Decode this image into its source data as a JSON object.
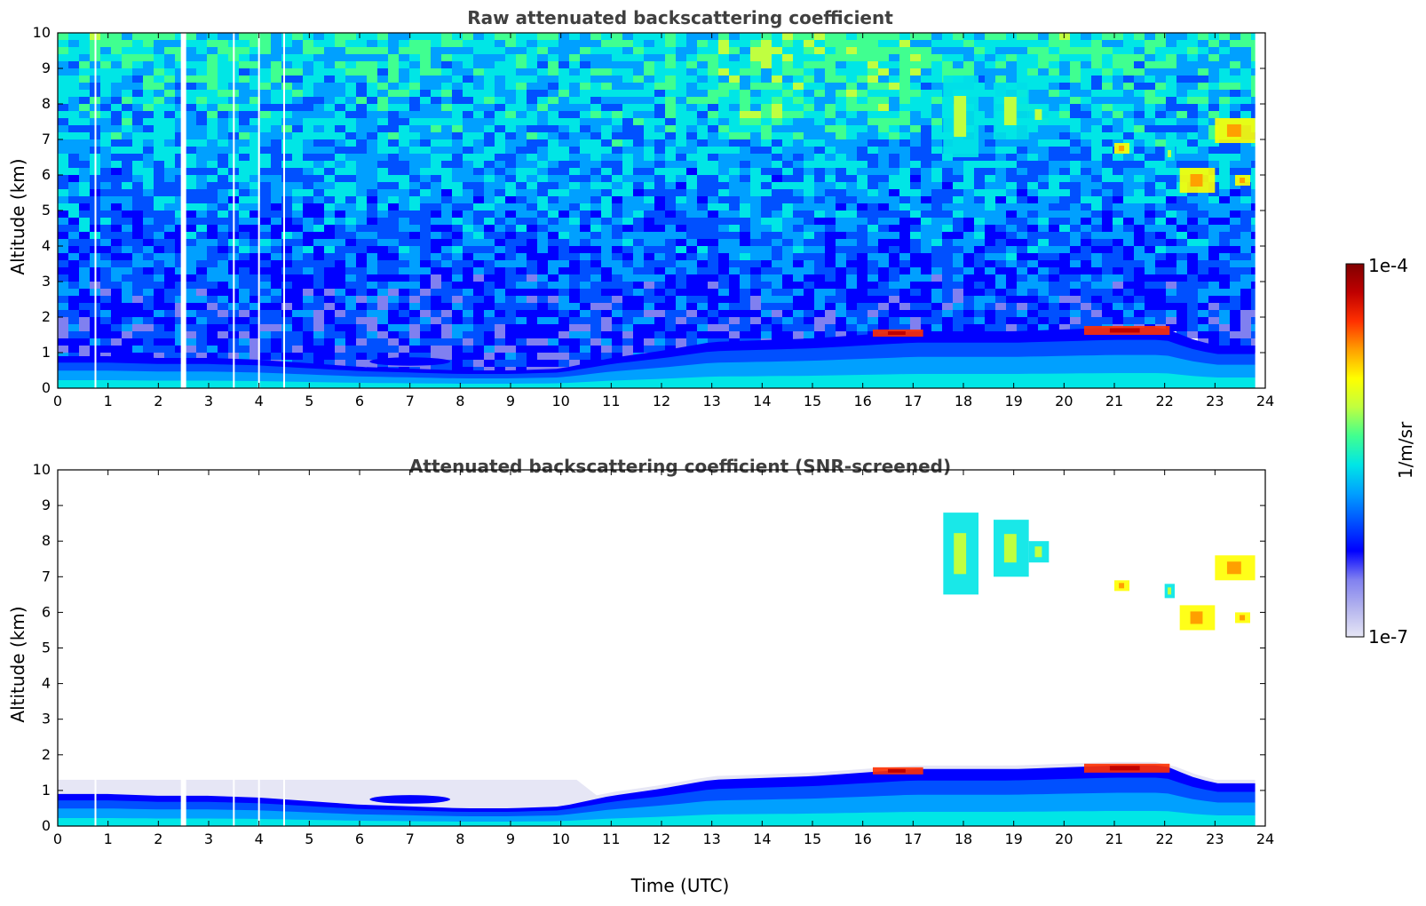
{
  "figure": {
    "xlabel": "Time (UTC)",
    "colorbar": {
      "label": "1/m/sr",
      "min_label": "1e-7",
      "max_label": "1e-4",
      "scale": "log",
      "range": [
        1e-07,
        0.0001
      ],
      "colormap": "jet",
      "colors": [
        "#e6e6f5",
        "#b4b4ee",
        "#8080f0",
        "#0000ff",
        "#0050ff",
        "#00a0ff",
        "#00e6e6",
        "#40ff90",
        "#c0ff40",
        "#ffff00",
        "#ffa000",
        "#ff3000",
        "#c00000",
        "#800000"
      ]
    }
  },
  "chart_data": [
    {
      "type": "heatmap",
      "title": "Raw attenuated backscattering coefficient",
      "xlabel": "",
      "ylabel": "Altitude (km)",
      "xlim": [
        0,
        24
      ],
      "ylim": [
        0,
        10
      ],
      "xticks": [
        "0",
        "1",
        "2",
        "3",
        "4",
        "5",
        "6",
        "7",
        "8",
        "9",
        "10",
        "11",
        "12",
        "13",
        "14",
        "15",
        "16",
        "17",
        "18",
        "19",
        "20",
        "21",
        "22",
        "23",
        "24"
      ],
      "yticks": [
        "0",
        "1",
        "2",
        "3",
        "4",
        "5",
        "6",
        "7",
        "8",
        "9",
        "10"
      ],
      "data_gaps_hours": [
        0.75,
        2.5,
        3.5,
        4.0,
        4.5
      ],
      "data_end_hour": 23.8,
      "boundary_layer_top_km": {
        "x": [
          0,
          1,
          2,
          3,
          4,
          5,
          6,
          7,
          8,
          9,
          10,
          11,
          12,
          13,
          14,
          15,
          16,
          17,
          18,
          19,
          20,
          21,
          22,
          22.5,
          23,
          23.8
        ],
        "y": [
          0.9,
          0.9,
          0.85,
          0.85,
          0.8,
          0.7,
          0.6,
          0.55,
          0.5,
          0.5,
          0.55,
          0.85,
          1.05,
          1.3,
          1.35,
          1.4,
          1.5,
          1.6,
          1.6,
          1.6,
          1.65,
          1.7,
          1.7,
          1.4,
          1.2,
          1.2
        ]
      },
      "clouds": [
        {
          "t0": 17.6,
          "t1": 18.3,
          "alt0": 6.5,
          "alt1": 8.8,
          "level": "medium"
        },
        {
          "t0": 18.6,
          "t1": 19.3,
          "alt0": 7.0,
          "alt1": 8.6,
          "level": "medium"
        },
        {
          "t0": 19.3,
          "t1": 19.7,
          "alt0": 7.4,
          "alt1": 8.0,
          "level": "medium"
        },
        {
          "t0": 21.0,
          "t1": 21.3,
          "alt0": 6.6,
          "alt1": 6.9,
          "level": "high"
        },
        {
          "t0": 22.0,
          "t1": 22.2,
          "alt0": 6.4,
          "alt1": 6.8,
          "level": "medium"
        },
        {
          "t0": 22.3,
          "t1": 23.0,
          "alt0": 5.5,
          "alt1": 6.2,
          "level": "high"
        },
        {
          "t0": 23.0,
          "t1": 23.8,
          "alt0": 6.9,
          "alt1": 7.6,
          "level": "high"
        },
        {
          "t0": 23.4,
          "t1": 23.7,
          "alt0": 5.7,
          "alt1": 6.0,
          "level": "high"
        },
        {
          "t0": 16.2,
          "t1": 17.2,
          "alt0": 1.45,
          "alt1": 1.65,
          "level": "peak"
        },
        {
          "t0": 20.4,
          "t1": 22.1,
          "alt0": 1.5,
          "alt1": 1.75,
          "level": "peak"
        }
      ]
    },
    {
      "type": "heatmap",
      "title": "Attenuated backscattering coefficient (SNR-screened)",
      "xlabel": "Time (UTC)",
      "ylabel": "Altitude (km)",
      "xlim": [
        0,
        24
      ],
      "ylim": [
        0,
        10
      ],
      "xticks": [
        "0",
        "1",
        "2",
        "3",
        "4",
        "5",
        "6",
        "7",
        "8",
        "9",
        "10",
        "11",
        "12",
        "13",
        "14",
        "15",
        "16",
        "17",
        "18",
        "19",
        "20",
        "21",
        "22",
        "23",
        "24"
      ],
      "yticks": [
        "0",
        "1",
        "2",
        "3",
        "4",
        "5",
        "6",
        "7",
        "8",
        "9",
        "10"
      ],
      "screened": true
    }
  ]
}
